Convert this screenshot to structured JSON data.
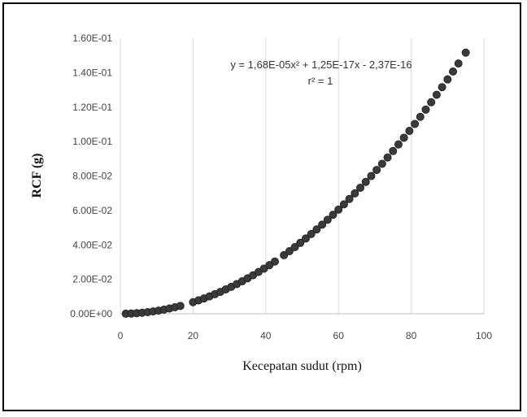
{
  "chart_data": {
    "type": "scatter",
    "title": "",
    "xlabel": "Kecepatan sudut (rpm)",
    "ylabel": "RCF (g)",
    "xlim": [
      0,
      100
    ],
    "ylim": [
      0,
      0.16
    ],
    "x_ticks": [
      "0",
      "20",
      "40",
      "60",
      "80",
      "100"
    ],
    "y_ticks": [
      "0.00E+00",
      "2.00E-02",
      "4.00E-02",
      "6.00E-02",
      "8.00E-02",
      "1.00E-01",
      "1.20E-01",
      "1.40E-01",
      "1.60E-01"
    ],
    "grid": "vertical",
    "trendline": {
      "equation": "y = 1,68E-05x² + 1,25E-17x - 2,37E-16",
      "r_squared": "r² = 1"
    },
    "series": [
      {
        "color": "#3a3a3a",
        "points": [
          [
            1.5,
            4e-05
          ],
          [
            3,
            0.00015
          ],
          [
            4.5,
            0.00034
          ],
          [
            6,
            0.0006
          ],
          [
            7.5,
            0.00095
          ],
          [
            9,
            0.00136
          ],
          [
            10.5,
            0.00185
          ],
          [
            12,
            0.00242
          ],
          [
            13.5,
            0.00306
          ],
          [
            15,
            0.00378
          ],
          [
            16.5,
            0.00457
          ],
          [
            20,
            0.00672
          ],
          [
            21.5,
            0.00777
          ],
          [
            23,
            0.00889
          ],
          [
            24.5,
            0.01008
          ],
          [
            26,
            0.01136
          ],
          [
            27.5,
            0.0127
          ],
          [
            29,
            0.01413
          ],
          [
            30.5,
            0.01563
          ],
          [
            32,
            0.0172
          ],
          [
            33.5,
            0.01885
          ],
          [
            35,
            0.02058
          ],
          [
            36.5,
            0.02238
          ],
          [
            38,
            0.02426
          ],
          [
            39.5,
            0.02621
          ],
          [
            41,
            0.02824
          ],
          [
            42.5,
            0.03035
          ],
          [
            45,
            0.03402
          ],
          [
            46.5,
            0.03633
          ],
          [
            48,
            0.03871
          ],
          [
            49.5,
            0.04116
          ],
          [
            51,
            0.0437
          ],
          [
            52.5,
            0.0463
          ],
          [
            54,
            0.04899
          ],
          [
            55.5,
            0.05175
          ],
          [
            57,
            0.05458
          ],
          [
            58.5,
            0.05749
          ],
          [
            60,
            0.06048
          ],
          [
            61.5,
            0.06354
          ],
          [
            63,
            0.06668
          ],
          [
            64.5,
            0.06989
          ],
          [
            66,
            0.07318
          ],
          [
            67.5,
            0.07655
          ],
          [
            69,
            0.07998
          ],
          [
            70.5,
            0.0835
          ],
          [
            72,
            0.08709
          ],
          [
            73.5,
            0.09076
          ],
          [
            75,
            0.0945
          ],
          [
            76.5,
            0.09832
          ],
          [
            78,
            0.10221
          ],
          [
            79.5,
            0.10618
          ],
          [
            81,
            0.11022
          ],
          [
            82.5,
            0.11434
          ],
          [
            84,
            0.11854
          ],
          [
            85.5,
            0.12281
          ],
          [
            87,
            0.12716
          ],
          [
            88.5,
            0.13158
          ],
          [
            90,
            0.13608
          ],
          [
            91.5,
            0.14065
          ],
          [
            93,
            0.1453
          ],
          [
            95,
            0.15162
          ]
        ]
      }
    ]
  }
}
